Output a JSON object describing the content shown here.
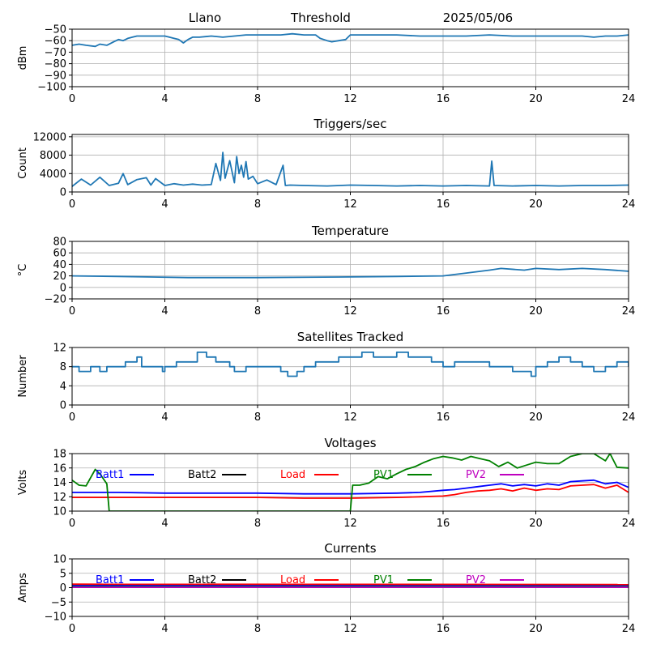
{
  "header": {
    "station": "Llano",
    "mode": "Threshold",
    "date": "2025/05/06"
  },
  "chart_data": [
    {
      "id": "signal",
      "type": "line",
      "title": "",
      "xlabel": "",
      "ylabel": "dBm",
      "xlim": [
        0,
        24
      ],
      "ylim": [
        -100,
        -50
      ],
      "xticks": [
        0,
        4,
        8,
        12,
        16,
        20,
        24
      ],
      "yticks": [
        -100,
        -90,
        -80,
        -70,
        -60,
        -50
      ],
      "grid": true,
      "series": [
        {
          "color": "#1f77b4",
          "x": [
            0,
            0.3,
            0.6,
            1.0,
            1.2,
            1.5,
            1.8,
            2.0,
            2.2,
            2.4,
            2.6,
            2.8,
            3.0,
            3.5,
            4.0,
            4.2,
            4.4,
            4.6,
            4.8,
            5.0,
            5.2,
            5.5,
            6.0,
            6.5,
            7.0,
            7.5,
            8.0,
            8.5,
            9.0,
            9.5,
            10.0,
            10.5,
            10.7,
            11.0,
            11.2,
            11.5,
            11.8,
            12.0,
            12.5,
            13.0,
            14.0,
            15.0,
            16.0,
            17.0,
            18.0,
            19.0,
            20.0,
            21.0,
            22.0,
            22.5,
            23.0,
            23.5,
            24.0
          ],
          "y": [
            -64,
            -63,
            -64,
            -65,
            -63,
            -64,
            -61,
            -59,
            -60,
            -58,
            -57,
            -56,
            -56,
            -56,
            -56,
            -57,
            -58,
            -59,
            -62,
            -59,
            -57,
            -57,
            -56,
            -57,
            -56,
            -55,
            -55,
            -55,
            -55,
            -54,
            -55,
            -55,
            -58,
            -60,
            -61,
            -60,
            -59,
            -55,
            -55,
            -55,
            -55,
            -56,
            -56,
            -56,
            -55,
            -56,
            -56,
            -56,
            -56,
            -57,
            -56,
            -56,
            -55
          ]
        }
      ]
    },
    {
      "id": "triggers",
      "type": "line",
      "title": "Triggers/sec",
      "xlabel": "",
      "ylabel": "Count",
      "xlim": [
        0,
        24
      ],
      "ylim": [
        0,
        12500
      ],
      "xticks": [
        0,
        4,
        8,
        12,
        16,
        20,
        24
      ],
      "yticks": [
        0,
        4000,
        8000,
        12000
      ],
      "grid": true,
      "series": [
        {
          "color": "#1f77b4",
          "x": [
            0,
            0.4,
            0.8,
            1.2,
            1.6,
            2.0,
            2.2,
            2.4,
            2.8,
            3.2,
            3.4,
            3.6,
            4.0,
            4.4,
            4.8,
            5.2,
            5.6,
            6.0,
            6.2,
            6.4,
            6.5,
            6.6,
            6.8,
            7.0,
            7.1,
            7.2,
            7.3,
            7.4,
            7.5,
            7.6,
            7.8,
            8.0,
            8.4,
            8.8,
            9.1,
            9.2,
            9.4,
            10.0,
            11.0,
            12.0,
            13.0,
            14.0,
            15.0,
            16.0,
            17.0,
            18.0,
            18.1,
            18.2,
            19.0,
            20.0,
            21.0,
            22.0,
            23.0,
            24.0
          ],
          "y": [
            1200,
            2800,
            1500,
            3200,
            1400,
            1900,
            4000,
            1600,
            2700,
            3100,
            1500,
            2900,
            1400,
            1800,
            1500,
            1700,
            1500,
            1600,
            6200,
            2500,
            8600,
            3000,
            6800,
            2000,
            7700,
            4000,
            5800,
            3200,
            6600,
            2800,
            3400,
            1800,
            2600,
            1600,
            5800,
            1400,
            1500,
            1400,
            1300,
            1500,
            1400,
            1300,
            1400,
            1300,
            1400,
            1300,
            6700,
            1400,
            1300,
            1400,
            1300,
            1400,
            1400,
            1500
          ]
        }
      ]
    },
    {
      "id": "temperature",
      "type": "line",
      "title": "Temperature",
      "xlabel": "",
      "ylabel": "°C",
      "xlim": [
        0,
        24
      ],
      "ylim": [
        -20,
        80
      ],
      "xticks": [
        0,
        4,
        8,
        12,
        16,
        20,
        24
      ],
      "yticks": [
        -20,
        0,
        20,
        40,
        60,
        80
      ],
      "grid": true,
      "series": [
        {
          "color": "#1f77b4",
          "x": [
            0,
            2,
            3.5,
            5,
            8,
            11.5,
            14,
            16,
            17,
            18,
            18.5,
            19.5,
            20,
            21,
            22,
            23,
            24
          ],
          "y": [
            20,
            19,
            18,
            17,
            17,
            18,
            19,
            20,
            25,
            30,
            33,
            30,
            33,
            31,
            33,
            31,
            28
          ]
        }
      ]
    },
    {
      "id": "satellites",
      "type": "line",
      "title": "Satellites Tracked",
      "xlabel": "",
      "ylabel": "Number",
      "xlim": [
        0,
        24
      ],
      "ylim": [
        0,
        12
      ],
      "xticks": [
        0,
        4,
        8,
        12,
        16,
        20,
        24
      ],
      "yticks": [
        0,
        4,
        8,
        12
      ],
      "grid": true,
      "series": [
        {
          "color": "#1f77b4",
          "step": true,
          "x": [
            0,
            0.3,
            0.8,
            1.2,
            1.5,
            1.7,
            2.3,
            2.8,
            3.0,
            3.5,
            3.9,
            4.0,
            4.5,
            5.0,
            5.4,
            5.8,
            6.2,
            6.8,
            7.0,
            7.5,
            8.0,
            8.5,
            9.0,
            9.3,
            9.7,
            10.0,
            10.5,
            11.0,
            11.5,
            12.0,
            12.5,
            13.0,
            13.5,
            14.0,
            14.5,
            15.0,
            15.5,
            16.0,
            16.5,
            17.0,
            17.5,
            18.0,
            18.5,
            19.0,
            19.5,
            19.8,
            20.0,
            20.5,
            21.0,
            21.5,
            22.0,
            22.5,
            23.0,
            23.5,
            24.0
          ],
          "y": [
            8,
            7,
            8,
            7,
            8,
            8,
            9,
            10,
            8,
            8,
            7,
            8,
            9,
            9,
            11,
            10,
            9,
            8,
            7,
            8,
            8,
            8,
            7,
            6,
            7,
            8,
            9,
            9,
            10,
            10,
            11,
            10,
            10,
            11,
            10,
            10,
            9,
            8,
            9,
            9,
            9,
            8,
            8,
            7,
            7,
            6,
            8,
            9,
            10,
            9,
            8,
            7,
            8,
            9,
            8
          ]
        }
      ]
    },
    {
      "id": "voltages",
      "type": "line",
      "title": "Voltages",
      "xlabel": "",
      "ylabel": "Volts",
      "xlim": [
        0,
        24
      ],
      "ylim": [
        10,
        18
      ],
      "xticks": [
        0,
        4,
        8,
        12,
        16,
        20,
        24
      ],
      "yticks": [
        10,
        12,
        14,
        16,
        18
      ],
      "grid": true,
      "legend": [
        "Batt1",
        "Batt2",
        "Load",
        "PV1",
        "PV2"
      ],
      "series": [
        {
          "name": "Batt1",
          "color": "#0000ff",
          "x": [
            0,
            2,
            4,
            6,
            8,
            10,
            12,
            14,
            15,
            16,
            16.5,
            17,
            17.5,
            18,
            18.5,
            19,
            19.5,
            20,
            20.5,
            21,
            21.5,
            22,
            22.5,
            23,
            23.5,
            24
          ],
          "y": [
            12.6,
            12.6,
            12.5,
            12.5,
            12.5,
            12.4,
            12.4,
            12.5,
            12.6,
            12.9,
            13.0,
            13.2,
            13.4,
            13.6,
            13.8,
            13.5,
            13.7,
            13.5,
            13.8,
            13.6,
            14.1,
            14.2,
            14.3,
            13.8,
            14.0,
            13.3
          ]
        },
        {
          "name": "Batt2",
          "color": "#000000",
          "x": [],
          "y": []
        },
        {
          "name": "Load",
          "color": "#ff0000",
          "x": [
            0,
            2,
            4,
            6,
            8,
            10,
            12,
            14,
            15,
            16,
            16.5,
            17,
            17.5,
            18,
            18.5,
            19,
            19.5,
            20,
            20.5,
            21,
            21.5,
            22,
            22.5,
            23,
            23.5,
            24
          ],
          "y": [
            11.9,
            11.9,
            11.9,
            11.9,
            11.9,
            11.8,
            11.8,
            11.9,
            12.0,
            12.1,
            12.3,
            12.6,
            12.8,
            12.9,
            13.1,
            12.8,
            13.2,
            12.9,
            13.1,
            13.0,
            13.5,
            13.6,
            13.7,
            13.2,
            13.6,
            12.6
          ]
        },
        {
          "name": "PV1",
          "color": "#008000",
          "x": [
            0,
            0.3,
            0.6,
            1.0,
            1.2,
            1.5,
            1.6,
            12.0,
            12.1,
            12.4,
            12.8,
            13.2,
            13.6,
            14.0,
            14.4,
            14.8,
            15.2,
            15.6,
            16.0,
            16.4,
            16.8,
            17.2,
            17.6,
            18.0,
            18.4,
            18.8,
            19.2,
            19.6,
            20.0,
            20.5,
            21.0,
            21.5,
            22.0,
            22.5,
            23.0,
            23.2,
            23.5,
            24.0
          ],
          "y": [
            14.3,
            13.6,
            13.5,
            15.8,
            15.2,
            13.8,
            10.0,
            10.0,
            13.6,
            13.6,
            13.9,
            14.8,
            14.5,
            15.2,
            15.8,
            16.2,
            16.8,
            17.3,
            17.6,
            17.4,
            17.1,
            17.6,
            17.3,
            17.0,
            16.2,
            16.8,
            16.0,
            16.4,
            16.8,
            16.6,
            16.6,
            17.6,
            18.0,
            18.0,
            17.0,
            18.0,
            16.1,
            16.0
          ]
        },
        {
          "name": "PV2",
          "color": "#bf00bf",
          "x": [],
          "y": []
        }
      ]
    },
    {
      "id": "currents",
      "type": "line",
      "title": "Currents",
      "xlabel": "",
      "ylabel": "Amps",
      "xlim": [
        0,
        24
      ],
      "ylim": [
        -10,
        10
      ],
      "xticks": [
        0,
        4,
        8,
        12,
        16,
        20,
        24
      ],
      "yticks": [
        -10,
        -5,
        0,
        5,
        10
      ],
      "grid": true,
      "legend": [
        "Batt1",
        "Batt2",
        "Load",
        "PV1",
        "PV2"
      ],
      "series": [
        {
          "name": "Batt1",
          "color": "#0000ff",
          "x": [
            0,
            24
          ],
          "y": [
            0.8,
            0.7
          ]
        },
        {
          "name": "Batt2",
          "color": "#000000",
          "x": [],
          "y": []
        },
        {
          "name": "Load",
          "color": "#ff0000",
          "x": [
            0,
            24
          ],
          "y": [
            1.2,
            1.1
          ]
        },
        {
          "name": "PV1",
          "color": "#008000",
          "x": [
            0,
            24
          ],
          "y": [
            0.3,
            0.3
          ]
        },
        {
          "name": "PV2",
          "color": "#bf00bf",
          "x": [
            0,
            24
          ],
          "y": [
            0.1,
            0.1
          ]
        }
      ]
    }
  ]
}
